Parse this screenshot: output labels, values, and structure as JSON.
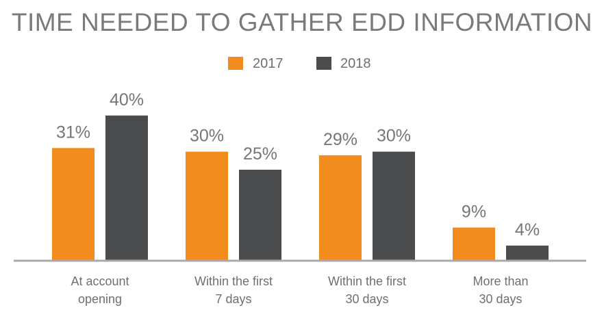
{
  "chart_data": {
    "type": "bar",
    "title": "TIME NEEDED TO GATHER EDD INFORMATION",
    "categories": [
      [
        "At account",
        "opening"
      ],
      [
        "Within the first",
        "7 days"
      ],
      [
        "Within the first",
        "30 days"
      ],
      [
        "More than",
        "30 days"
      ]
    ],
    "series": [
      {
        "name": "2017",
        "color": "#f28c1e",
        "values": [
          31,
          30,
          29,
          9
        ],
        "labels": [
          "31%",
          "30%",
          "29%",
          "9%"
        ]
      },
      {
        "name": "2018",
        "color": "#4a4b4d",
        "values": [
          40,
          25,
          30,
          4
        ],
        "labels": [
          "40%",
          "25%",
          "30%",
          "4%"
        ]
      }
    ],
    "ylim": [
      0,
      40
    ],
    "grid": false,
    "legend_position": "top-center",
    "axis_color": "#a9a9a9"
  }
}
